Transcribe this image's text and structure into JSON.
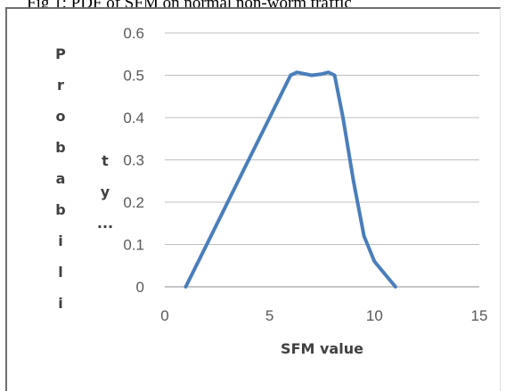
{
  "caption": "Fig 1: PDF of SFM on normal non-worm traffic",
  "chart_data": {
    "type": "line",
    "title": "",
    "xlabel": "SFM value",
    "ylabel_col1": [
      "P",
      "r",
      "o",
      "b",
      "a",
      "b",
      "i",
      "l",
      "i"
    ],
    "ylabel_col2": [
      "t",
      "y",
      "..."
    ],
    "xlim": [
      0,
      15
    ],
    "ylim": [
      0,
      0.6
    ],
    "xticks": [
      "0",
      "5",
      "10",
      "15"
    ],
    "yticks": [
      "0",
      "0.1",
      "0.2",
      "0.3",
      "0.4",
      "0.5",
      "0.6"
    ],
    "grid": "horizontal",
    "line_color": "#4a7ebb",
    "series": [
      {
        "x": [
          1,
          2,
          3,
          4,
          5,
          5.5,
          6,
          6.3,
          6.7,
          7,
          7.5,
          7.8,
          8.1,
          8.5,
          9,
          9.5,
          10,
          10.5,
          11
        ],
        "y": [
          0,
          0.1,
          0.2,
          0.3,
          0.4,
          0.45,
          0.5,
          0.507,
          0.503,
          0.5,
          0.503,
          0.507,
          0.5,
          0.4,
          0.25,
          0.12,
          0.06,
          0.03,
          0
        ]
      }
    ]
  }
}
